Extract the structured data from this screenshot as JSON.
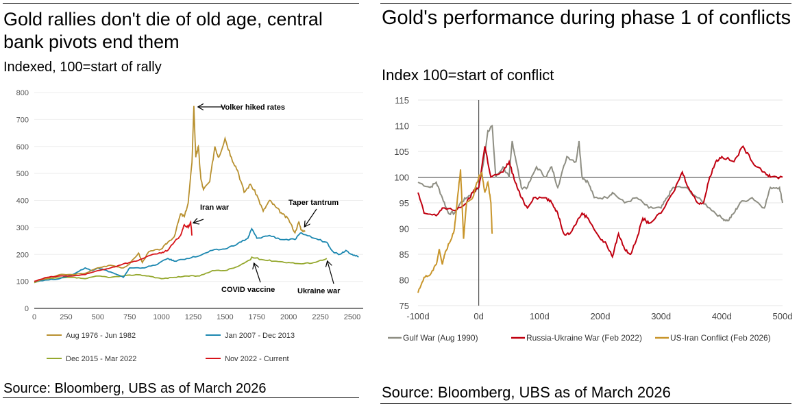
{
  "chart_data": [
    {
      "type": "line",
      "title": "Gold rallies don't die of old age, central bank pivots end them",
      "subtitle": "Indexed, 100=start of rally",
      "source": "Source: Bloomberg, UBS as of March 2026",
      "xlim": [
        0,
        2550
      ],
      "ylim": [
        0,
        800
      ],
      "xticks": [
        "0",
        "250",
        "500",
        "750",
        "1000",
        "1250",
        "1500",
        "1750",
        "2000",
        "2250",
        "2500"
      ],
      "yticks": [
        "0",
        "100",
        "200",
        "300",
        "400",
        "500",
        "600",
        "700",
        "800"
      ],
      "grid": true,
      "legend": "bottom",
      "annotations": [
        {
          "text": "Volker hiked rates",
          "x": 1260,
          "y": 750
        },
        {
          "text": "Iran war",
          "x": 1235,
          "y": 320
        },
        {
          "text": "Taper tantrum",
          "x": 2080,
          "y": 285
        },
        {
          "text": "COVID vaccine",
          "x": 1700,
          "y": 180
        },
        {
          "text": "Ukraine war",
          "x": 2290,
          "y": 185
        }
      ],
      "series": [
        {
          "name": "Aug 1976 - Jun 1982",
          "color": "#B8902F",
          "points": [
            [
              0,
              100
            ],
            [
              100,
              110
            ],
            [
              200,
              125
            ],
            [
              300,
              125
            ],
            [
              400,
              130
            ],
            [
              500,
              150
            ],
            [
              600,
              160
            ],
            [
              700,
              150
            ],
            [
              750,
              165
            ],
            [
              820,
              205
            ],
            [
              850,
              170
            ],
            [
              900,
              210
            ],
            [
              1000,
              220
            ],
            [
              1050,
              245
            ],
            [
              1100,
              265
            ],
            [
              1150,
              350
            ],
            [
              1180,
              340
            ],
            [
              1210,
              390
            ],
            [
              1240,
              540
            ],
            [
              1255,
              750
            ],
            [
              1270,
              560
            ],
            [
              1290,
              600
            ],
            [
              1310,
              480
            ],
            [
              1330,
              440
            ],
            [
              1380,
              470
            ],
            [
              1420,
              600
            ],
            [
              1450,
              560
            ],
            [
              1500,
              630
            ],
            [
              1550,
              560
            ],
            [
              1600,
              510
            ],
            [
              1650,
              430
            ],
            [
              1700,
              460
            ],
            [
              1750,
              420
            ],
            [
              1800,
              360
            ],
            [
              1850,
              400
            ],
            [
              1900,
              375
            ],
            [
              1950,
              350
            ],
            [
              2000,
              330
            ],
            [
              2050,
              280
            ],
            [
              2080,
              320
            ],
            [
              2100,
              290
            ],
            [
              2130,
              285
            ]
          ]
        },
        {
          "name": "Jan 2007 - Dec 2013",
          "color": "#1B87B0",
          "points": [
            [
              0,
              100
            ],
            [
              100,
              105
            ],
            [
              200,
              110
            ],
            [
              300,
              125
            ],
            [
              400,
              150
            ],
            [
              450,
              140
            ],
            [
              500,
              150
            ],
            [
              600,
              135
            ],
            [
              650,
              125
            ],
            [
              700,
              115
            ],
            [
              750,
              150
            ],
            [
              850,
              150
            ],
            [
              950,
              160
            ],
            [
              1050,
              185
            ],
            [
              1100,
              175
            ],
            [
              1200,
              185
            ],
            [
              1300,
              195
            ],
            [
              1400,
              215
            ],
            [
              1500,
              220
            ],
            [
              1600,
              240
            ],
            [
              1680,
              260
            ],
            [
              1710,
              295
            ],
            [
              1750,
              260
            ],
            [
              1850,
              270
            ],
            [
              1950,
              255
            ],
            [
              2050,
              255
            ],
            [
              2100,
              280
            ],
            [
              2200,
              260
            ],
            [
              2300,
              245
            ],
            [
              2350,
              210
            ],
            [
              2400,
              200
            ],
            [
              2450,
              215
            ],
            [
              2500,
              200
            ],
            [
              2550,
              190
            ]
          ]
        },
        {
          "name": "Dec 2015 - Mar 2022",
          "color": "#95A82E",
          "points": [
            [
              0,
              95
            ],
            [
              100,
              110
            ],
            [
              300,
              115
            ],
            [
              400,
              110
            ],
            [
              500,
              120
            ],
            [
              600,
              115
            ],
            [
              700,
              120
            ],
            [
              800,
              125
            ],
            [
              900,
              120
            ],
            [
              1000,
              110
            ],
            [
              1100,
              115
            ],
            [
              1200,
              120
            ],
            [
              1300,
              120
            ],
            [
              1400,
              140
            ],
            [
              1500,
              140
            ],
            [
              1600,
              155
            ],
            [
              1700,
              180
            ],
            [
              1710,
              190
            ],
            [
              1800,
              180
            ],
            [
              1900,
              175
            ],
            [
              2000,
              170
            ],
            [
              2100,
              165
            ],
            [
              2200,
              170
            ],
            [
              2300,
              185
            ]
          ]
        },
        {
          "name": "Nov 2022 - Current",
          "color": "#D7141A",
          "points": [
            [
              0,
              100
            ],
            [
              100,
              115
            ],
            [
              200,
              120
            ],
            [
              300,
              120
            ],
            [
              400,
              125
            ],
            [
              500,
              140
            ],
            [
              600,
              150
            ],
            [
              700,
              165
            ],
            [
              800,
              175
            ],
            [
              900,
              195
            ],
            [
              1000,
              205
            ],
            [
              1050,
              215
            ],
            [
              1100,
              245
            ],
            [
              1150,
              270
            ],
            [
              1180,
              310
            ],
            [
              1210,
              300
            ],
            [
              1230,
              320
            ],
            [
              1240,
              270
            ]
          ]
        }
      ]
    },
    {
      "type": "line",
      "title": "Gold's performance during phase 1 of conflicts",
      "subtitle": "Index 100=start of conflict",
      "source": "Source: Bloomberg, UBS as of March 2026",
      "xlim": [
        -100,
        500
      ],
      "ylim": [
        75,
        115
      ],
      "xticks": [
        "-100d",
        "0d",
        "100d",
        "200d",
        "300d",
        "400d",
        "500d"
      ],
      "yticks": [
        "75",
        "80",
        "85",
        "90",
        "95",
        "100",
        "105",
        "110",
        "115"
      ],
      "grid": true,
      "legend": "bottom",
      "series": [
        {
          "name": "Gulf War (Aug 1990)",
          "color": "#8E8E83",
          "points": [
            [
              -100,
              99
            ],
            [
              -80,
              98
            ],
            [
              -70,
              99
            ],
            [
              -60,
              96
            ],
            [
              -50,
              93
            ],
            [
              -40,
              93
            ],
            [
              -30,
              95
            ],
            [
              -20,
              96
            ],
            [
              -10,
              97
            ],
            [
              0,
              98
            ],
            [
              8,
              103
            ],
            [
              15,
              109
            ],
            [
              22,
              110
            ],
            [
              28,
              100
            ],
            [
              40,
              102
            ],
            [
              50,
              100
            ],
            [
              55,
              107
            ],
            [
              60,
              104
            ],
            [
              70,
              98
            ],
            [
              80,
              98
            ],
            [
              95,
              102
            ],
            [
              110,
              100
            ],
            [
              120,
              102
            ],
            [
              130,
              98
            ],
            [
              145,
              104
            ],
            [
              160,
              103
            ],
            [
              165,
              107
            ],
            [
              170,
              100
            ],
            [
              180,
              99
            ],
            [
              190,
              96
            ],
            [
              210,
              96
            ],
            [
              220,
              97
            ],
            [
              240,
              95
            ],
            [
              260,
              96
            ],
            [
              280,
              94
            ],
            [
              300,
              94
            ],
            [
              310,
              96
            ],
            [
              320,
              98
            ],
            [
              340,
              98
            ],
            [
              360,
              96
            ],
            [
              380,
              94
            ],
            [
              400,
              92
            ],
            [
              410,
              91.5
            ],
            [
              420,
              93
            ],
            [
              430,
              95
            ],
            [
              450,
              96
            ],
            [
              470,
              94
            ],
            [
              480,
              98
            ],
            [
              495,
              98
            ],
            [
              500,
              95
            ]
          ]
        },
        {
          "name": "Russia-Ukraine War (Feb 2022)",
          "color": "#C00010",
          "points": [
            [
              -100,
              97
            ],
            [
              -90,
              93
            ],
            [
              -70,
              92.5
            ],
            [
              -60,
              94
            ],
            [
              -40,
              93.5
            ],
            [
              -20,
              95
            ],
            [
              -10,
              97
            ],
            [
              0,
              98
            ],
            [
              10,
              106
            ],
            [
              20,
              100
            ],
            [
              40,
              101
            ],
            [
              50,
              103
            ],
            [
              60,
              99
            ],
            [
              70,
              96
            ],
            [
              80,
              94
            ],
            [
              90,
              96
            ],
            [
              110,
              96
            ],
            [
              120,
              95
            ],
            [
              130,
              93
            ],
            [
              140,
              89
            ],
            [
              150,
              89
            ],
            [
              170,
              93
            ],
            [
              180,
              92
            ],
            [
              200,
              88
            ],
            [
              210,
              87
            ],
            [
              220,
              84.5
            ],
            [
              230,
              89
            ],
            [
              240,
              86
            ],
            [
              250,
              85
            ],
            [
              260,
              88
            ],
            [
              270,
              92
            ],
            [
              280,
              91
            ],
            [
              300,
              93
            ],
            [
              320,
              97
            ],
            [
              335,
              101
            ],
            [
              345,
              98
            ],
            [
              360,
              95
            ],
            [
              370,
              95
            ],
            [
              380,
              100
            ],
            [
              390,
              103
            ],
            [
              400,
              104
            ],
            [
              420,
              103
            ],
            [
              435,
              106
            ],
            [
              450,
              103
            ],
            [
              470,
              101
            ],
            [
              480,
              100
            ],
            [
              500,
              100
            ]
          ]
        },
        {
          "name": "US-Iran Conflict (Feb 2026)",
          "color": "#C8952B",
          "points": [
            [
              -100,
              77.5
            ],
            [
              -90,
              80.5
            ],
            [
              -80,
              81
            ],
            [
              -70,
              83
            ],
            [
              -65,
              86
            ],
            [
              -60,
              83
            ],
            [
              -55,
              85.5
            ],
            [
              -45,
              88
            ],
            [
              -40,
              90
            ],
            [
              -35,
              96
            ],
            [
              -30,
              101.5
            ],
            [
              -25,
              88
            ],
            [
              -20,
              95
            ],
            [
              -10,
              96
            ],
            [
              0,
              100
            ],
            [
              5,
              101
            ],
            [
              10,
              97
            ],
            [
              15,
              99
            ],
            [
              20,
              95
            ],
            [
              22,
              89
            ]
          ]
        }
      ]
    }
  ]
}
